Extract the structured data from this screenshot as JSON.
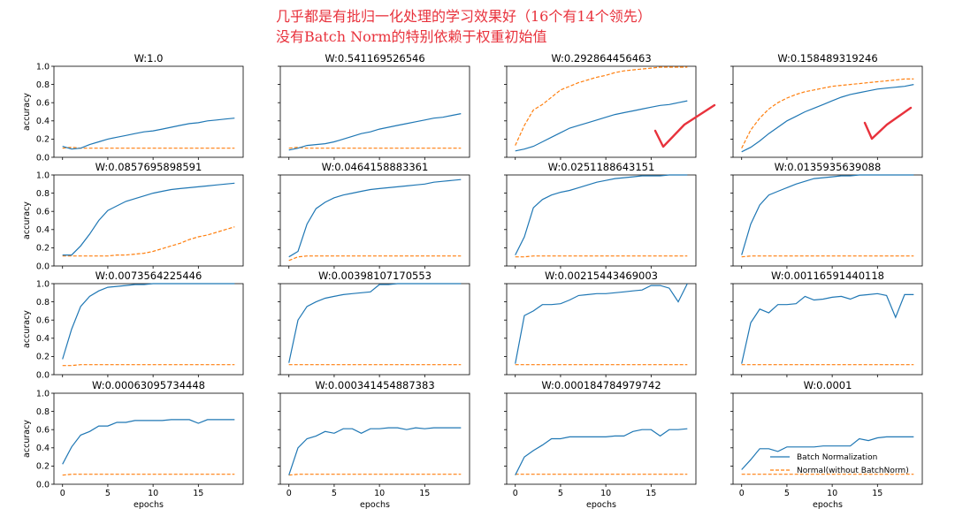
{
  "annotations": {
    "line1": "几乎都是有批归一化处理的学习效果好（16个有14个领先）",
    "line2": "没有Batch Norm的特别依赖于权重初始值"
  },
  "colors": {
    "batch_norm": "#1f77b4",
    "normal": "#ff7f0e",
    "handwriting": "#e8323c"
  },
  "chart_data": {
    "type": "line",
    "grid": false,
    "xlabel": "epochs",
    "ylabel": "accuracy",
    "xlim": [
      -0.95,
      19.95
    ],
    "ylim": [
      0,
      1.0
    ],
    "xticks": [
      0,
      5,
      10,
      15
    ],
    "yticks": [
      0.0,
      0.2,
      0.4,
      0.6,
      0.8,
      1.0
    ],
    "legend": {
      "placement": "lower-right",
      "panel": 15,
      "entries": [
        "Batch Normalization",
        "Normal(without BatchNorm)"
      ]
    },
    "series_names": [
      "Batch Normalization",
      "Normal(without BatchNorm)"
    ],
    "x": [
      0,
      1,
      2,
      3,
      4,
      5,
      6,
      7,
      8,
      9,
      10,
      11,
      12,
      13,
      14,
      15,
      16,
      17,
      18,
      19
    ],
    "panels": [
      {
        "title": "W:1.0",
        "bn": [
          0.12,
          0.09,
          0.1,
          0.14,
          0.17,
          0.2,
          0.22,
          0.24,
          0.26,
          0.28,
          0.29,
          0.31,
          0.33,
          0.35,
          0.37,
          0.38,
          0.4,
          0.41,
          0.42,
          0.43
        ],
        "normal": [
          0.1,
          0.11,
          0.1,
          0.1,
          0.1,
          0.1,
          0.1,
          0.1,
          0.1,
          0.1,
          0.1,
          0.1,
          0.1,
          0.1,
          0.1,
          0.1,
          0.1,
          0.1,
          0.1,
          0.1
        ]
      },
      {
        "title": "W:0.541169526546",
        "bn": [
          0.08,
          0.1,
          0.13,
          0.14,
          0.15,
          0.17,
          0.2,
          0.23,
          0.26,
          0.28,
          0.31,
          0.33,
          0.35,
          0.37,
          0.39,
          0.41,
          0.43,
          0.44,
          0.46,
          0.48
        ],
        "normal": [
          0.1,
          0.11,
          0.1,
          0.1,
          0.1,
          0.1,
          0.1,
          0.1,
          0.1,
          0.1,
          0.1,
          0.1,
          0.1,
          0.1,
          0.1,
          0.1,
          0.1,
          0.1,
          0.1,
          0.1
        ]
      },
      {
        "title": "W:0.292864456463",
        "bn": [
          0.07,
          0.09,
          0.12,
          0.17,
          0.22,
          0.27,
          0.32,
          0.35,
          0.38,
          0.41,
          0.44,
          0.47,
          0.49,
          0.51,
          0.53,
          0.55,
          0.57,
          0.58,
          0.6,
          0.62
        ],
        "normal": [
          0.13,
          0.35,
          0.52,
          0.58,
          0.66,
          0.74,
          0.78,
          0.82,
          0.85,
          0.88,
          0.9,
          0.93,
          0.95,
          0.96,
          0.97,
          0.98,
          0.99,
          0.99,
          0.99,
          0.99
        ]
      },
      {
        "title": "W:0.158489319246",
        "bn": [
          0.06,
          0.11,
          0.18,
          0.26,
          0.33,
          0.4,
          0.45,
          0.5,
          0.54,
          0.58,
          0.62,
          0.66,
          0.69,
          0.71,
          0.73,
          0.75,
          0.76,
          0.77,
          0.78,
          0.8
        ],
        "normal": [
          0.1,
          0.3,
          0.43,
          0.53,
          0.6,
          0.65,
          0.69,
          0.72,
          0.74,
          0.76,
          0.78,
          0.79,
          0.8,
          0.81,
          0.82,
          0.83,
          0.84,
          0.85,
          0.86,
          0.86
        ]
      },
      {
        "title": "W:0.0857695898591",
        "bn": [
          0.12,
          0.12,
          0.22,
          0.35,
          0.5,
          0.61,
          0.66,
          0.71,
          0.74,
          0.77,
          0.8,
          0.82,
          0.84,
          0.85,
          0.86,
          0.87,
          0.88,
          0.89,
          0.9,
          0.91
        ],
        "normal": [
          0.11,
          0.11,
          0.11,
          0.11,
          0.11,
          0.11,
          0.12,
          0.12,
          0.13,
          0.14,
          0.16,
          0.19,
          0.22,
          0.25,
          0.29,
          0.32,
          0.34,
          0.37,
          0.4,
          0.43
        ]
      },
      {
        "title": "W:0.0464158883361",
        "bn": [
          0.1,
          0.16,
          0.46,
          0.63,
          0.7,
          0.75,
          0.78,
          0.8,
          0.82,
          0.84,
          0.85,
          0.86,
          0.87,
          0.88,
          0.89,
          0.9,
          0.92,
          0.93,
          0.94,
          0.95
        ],
        "normal": [
          0.06,
          0.1,
          0.11,
          0.11,
          0.11,
          0.11,
          0.11,
          0.11,
          0.11,
          0.11,
          0.11,
          0.11,
          0.11,
          0.11,
          0.11,
          0.11,
          0.11,
          0.11,
          0.11,
          0.11
        ]
      },
      {
        "title": "W:0.0251188643151",
        "bn": [
          0.12,
          0.32,
          0.64,
          0.73,
          0.78,
          0.81,
          0.83,
          0.86,
          0.89,
          0.92,
          0.94,
          0.96,
          0.97,
          0.98,
          0.99,
          0.99,
          0.99,
          1.0,
          1.0,
          1.0
        ],
        "normal": [
          0.1,
          0.1,
          0.11,
          0.11,
          0.11,
          0.11,
          0.11,
          0.11,
          0.11,
          0.11,
          0.11,
          0.11,
          0.11,
          0.11,
          0.11,
          0.11,
          0.11,
          0.11,
          0.11,
          0.11
        ]
      },
      {
        "title": "W:0.0135935639088",
        "bn": [
          0.12,
          0.46,
          0.67,
          0.78,
          0.82,
          0.86,
          0.9,
          0.93,
          0.96,
          0.97,
          0.98,
          0.99,
          0.99,
          1.0,
          1.0,
          1.0,
          1.0,
          1.0,
          1.0,
          1.0
        ],
        "normal": [
          0.1,
          0.11,
          0.11,
          0.11,
          0.11,
          0.11,
          0.11,
          0.11,
          0.11,
          0.11,
          0.11,
          0.11,
          0.11,
          0.11,
          0.11,
          0.11,
          0.11,
          0.11,
          0.11,
          0.11
        ]
      },
      {
        "title": "W:0.0073564225446",
        "bn": [
          0.17,
          0.5,
          0.75,
          0.86,
          0.92,
          0.96,
          0.97,
          0.98,
          0.99,
          0.99,
          1.0,
          1.0,
          1.0,
          1.0,
          1.0,
          1.0,
          1.0,
          1.0,
          1.0,
          1.0
        ],
        "normal": [
          0.1,
          0.1,
          0.11,
          0.11,
          0.11,
          0.11,
          0.11,
          0.11,
          0.11,
          0.11,
          0.11,
          0.11,
          0.11,
          0.11,
          0.11,
          0.11,
          0.11,
          0.11,
          0.11,
          0.11
        ]
      },
      {
        "title": "W:0.00398107170553",
        "bn": [
          0.13,
          0.6,
          0.75,
          0.8,
          0.84,
          0.86,
          0.88,
          0.89,
          0.9,
          0.91,
          0.99,
          0.99,
          1.0,
          1.0,
          1.0,
          1.0,
          1.0,
          1.0,
          1.0,
          1.0
        ],
        "normal": [
          0.11,
          0.11,
          0.11,
          0.11,
          0.11,
          0.11,
          0.11,
          0.11,
          0.11,
          0.11,
          0.11,
          0.11,
          0.11,
          0.11,
          0.11,
          0.11,
          0.11,
          0.11,
          0.11,
          0.11
        ]
      },
      {
        "title": "W:0.00215443469003",
        "bn": [
          0.12,
          0.65,
          0.7,
          0.77,
          0.77,
          0.78,
          0.82,
          0.87,
          0.88,
          0.89,
          0.89,
          0.9,
          0.91,
          0.92,
          0.93,
          0.98,
          0.98,
          0.95,
          0.8,
          1.0
        ],
        "normal": [
          0.11,
          0.11,
          0.11,
          0.11,
          0.11,
          0.11,
          0.11,
          0.11,
          0.11,
          0.11,
          0.11,
          0.11,
          0.11,
          0.11,
          0.11,
          0.11,
          0.11,
          0.11,
          0.11,
          0.11
        ]
      },
      {
        "title": "W:0.00116591440118",
        "bn": [
          0.12,
          0.57,
          0.72,
          0.68,
          0.77,
          0.77,
          0.78,
          0.86,
          0.82,
          0.83,
          0.85,
          0.86,
          0.83,
          0.87,
          0.88,
          0.89,
          0.87,
          0.63,
          0.88,
          0.88
        ],
        "normal": [
          0.11,
          0.11,
          0.11,
          0.11,
          0.11,
          0.11,
          0.11,
          0.11,
          0.11,
          0.11,
          0.11,
          0.11,
          0.11,
          0.11,
          0.11,
          0.11,
          0.11,
          0.11,
          0.11,
          0.11
        ]
      },
      {
        "title": "W:0.00063095734448",
        "bn": [
          0.22,
          0.41,
          0.54,
          0.58,
          0.64,
          0.64,
          0.68,
          0.68,
          0.7,
          0.7,
          0.7,
          0.7,
          0.71,
          0.71,
          0.71,
          0.67,
          0.71,
          0.71,
          0.71,
          0.71
        ],
        "normal": [
          0.1,
          0.11,
          0.11,
          0.11,
          0.11,
          0.11,
          0.11,
          0.11,
          0.11,
          0.11,
          0.11,
          0.11,
          0.11,
          0.11,
          0.11,
          0.11,
          0.11,
          0.11,
          0.11,
          0.11
        ]
      },
      {
        "title": "W:0.000341454887383",
        "bn": [
          0.1,
          0.4,
          0.5,
          0.53,
          0.58,
          0.56,
          0.61,
          0.61,
          0.56,
          0.61,
          0.61,
          0.62,
          0.62,
          0.6,
          0.62,
          0.61,
          0.62,
          0.62,
          0.62,
          0.62
        ],
        "normal": [
          0.1,
          0.11,
          0.11,
          0.11,
          0.11,
          0.11,
          0.11,
          0.11,
          0.11,
          0.11,
          0.11,
          0.11,
          0.11,
          0.11,
          0.11,
          0.11,
          0.11,
          0.11,
          0.11,
          0.11
        ]
      },
      {
        "title": "W:0.000184784979742",
        "bn": [
          0.1,
          0.3,
          0.37,
          0.43,
          0.5,
          0.5,
          0.52,
          0.52,
          0.52,
          0.52,
          0.52,
          0.53,
          0.53,
          0.58,
          0.6,
          0.6,
          0.53,
          0.6,
          0.6,
          0.61
        ],
        "normal": [
          0.11,
          0.11,
          0.11,
          0.11,
          0.11,
          0.11,
          0.11,
          0.11,
          0.11,
          0.11,
          0.11,
          0.11,
          0.11,
          0.11,
          0.11,
          0.11,
          0.11,
          0.11,
          0.11,
          0.11
        ]
      },
      {
        "title": "W:0.0001",
        "bn": [
          0.16,
          0.27,
          0.39,
          0.39,
          0.36,
          0.41,
          0.41,
          0.41,
          0.41,
          0.42,
          0.42,
          0.42,
          0.42,
          0.5,
          0.48,
          0.51,
          0.52,
          0.52,
          0.52,
          0.52
        ],
        "normal": [
          0.11,
          0.11,
          0.11,
          0.11,
          0.11,
          0.11,
          0.11,
          0.11,
          0.11,
          0.11,
          0.11,
          0.11,
          0.11,
          0.11,
          0.11,
          0.11,
          0.11,
          0.11,
          0.11,
          0.11
        ]
      }
    ]
  }
}
